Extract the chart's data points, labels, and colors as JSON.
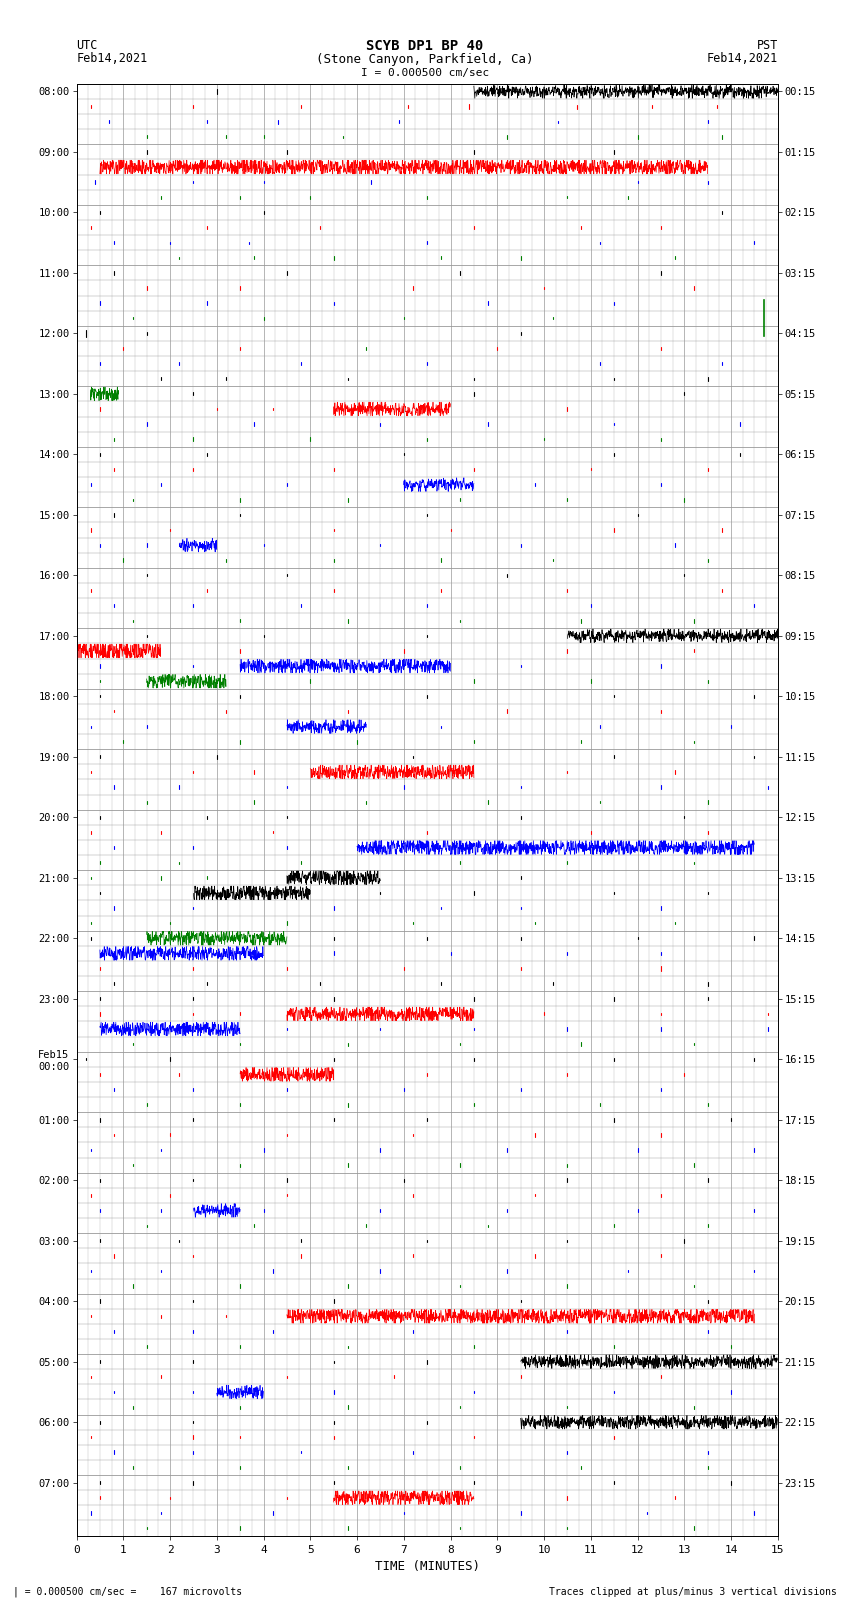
{
  "title_line1": "SCYB DP1 BP 40",
  "title_line2": "(Stone Canyon, Parkfield, Ca)",
  "scale_label": "I = 0.000500 cm/sec",
  "xlabel": "TIME (MINUTES)",
  "footer_left": "= 0.000500 cm/sec =    167 microvolts",
  "footer_right": "Traces clipped at plus/minus 3 vertical divisions",
  "xlim": [
    0,
    15
  ],
  "xticks": [
    0,
    1,
    2,
    3,
    4,
    5,
    6,
    7,
    8,
    9,
    10,
    11,
    12,
    13,
    14,
    15
  ],
  "num_hours": 24,
  "sub_rows": 4,
  "left_labels": [
    "08:00",
    "09:00",
    "10:00",
    "11:00",
    "12:00",
    "13:00",
    "14:00",
    "15:00",
    "16:00",
    "17:00",
    "18:00",
    "19:00",
    "20:00",
    "21:00",
    "22:00",
    "23:00",
    "Feb15\n00:00",
    "01:00",
    "02:00",
    "03:00",
    "04:00",
    "05:00",
    "06:00",
    "07:00"
  ],
  "right_labels": [
    "00:15",
    "01:15",
    "02:15",
    "03:15",
    "04:15",
    "05:15",
    "06:15",
    "07:15",
    "08:15",
    "09:15",
    "10:15",
    "11:15",
    "12:15",
    "13:15",
    "14:15",
    "15:15",
    "16:15",
    "17:15",
    "18:15",
    "19:15",
    "20:15",
    "21:15",
    "22:15",
    "23:15"
  ],
  "background_color": "#ffffff",
  "grid_color": "#999999",
  "trace_colors": [
    "black",
    "red",
    "blue",
    "green"
  ],
  "fig_width": 8.5,
  "fig_height": 16.13,
  "dpi": 100
}
